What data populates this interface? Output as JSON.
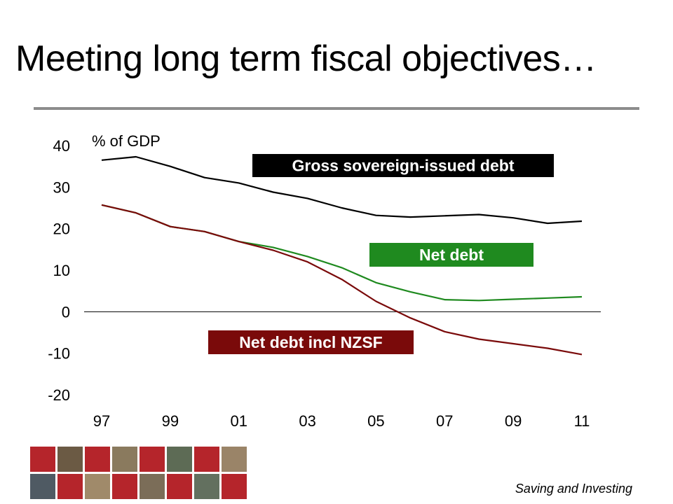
{
  "slide": {
    "title": "Meeting long term fiscal objectives…",
    "footer": "Saving and Investing"
  },
  "colors": {
    "gross": "#000000",
    "net": "#1f8a1f",
    "net_nzsf": "#7a0a0a",
    "rule": "#8c8c8c",
    "tile_red": "#b5252b"
  },
  "chart_data": {
    "type": "line",
    "ylabel": "% of GDP",
    "xlabel": "",
    "ylim": [
      -20,
      40
    ],
    "yticks": [
      40,
      30,
      20,
      10,
      0,
      -10,
      -20
    ],
    "xticks": [
      "97",
      "99",
      "01",
      "03",
      "05",
      "07",
      "09",
      "11"
    ],
    "grid": false,
    "x": [
      1997,
      1998,
      1999,
      2000,
      2001,
      2002,
      2003,
      2004,
      2005,
      2006,
      2007,
      2008,
      2009,
      2010,
      2011
    ],
    "series": [
      {
        "name": "Gross sovereign-issued debt",
        "color_key": "gross",
        "values": [
          36.5,
          37.3,
          35.0,
          32.3,
          31.0,
          28.8,
          27.3,
          25.0,
          23.2,
          22.8,
          23.1,
          23.4,
          22.6,
          21.3,
          21.8
        ]
      },
      {
        "name": "Net debt",
        "color_key": "net",
        "values": [
          25.7,
          23.8,
          20.5,
          19.3,
          16.9,
          15.5,
          13.3,
          10.6,
          7.0,
          4.8,
          2.9,
          2.7,
          3.0,
          3.3,
          3.6
        ]
      },
      {
        "name": "Net debt incl NZSF",
        "color_key": "net_nzsf",
        "values": [
          25.7,
          23.8,
          20.5,
          19.3,
          16.9,
          14.8,
          12.0,
          7.8,
          2.5,
          -1.5,
          -4.8,
          -6.6,
          -7.7,
          -8.8,
          -10.3
        ]
      }
    ],
    "labels": [
      {
        "text": "Gross sovereign-issued debt",
        "color_key": "gross"
      },
      {
        "text": "Net debt",
        "color_key": "net"
      },
      {
        "text": "Net debt incl NZSF",
        "color_key": "net_nzsf"
      }
    ]
  }
}
